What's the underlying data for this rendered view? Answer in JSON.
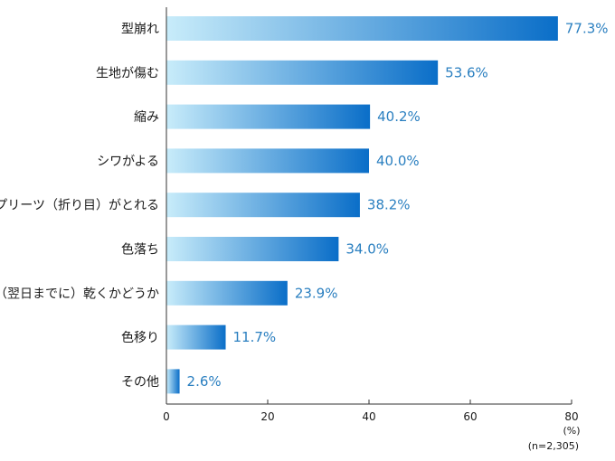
{
  "chart_data": {
    "type": "bar",
    "orientation": "horizontal",
    "categories": [
      "型崩れ",
      "生地が傷む",
      "縮み",
      "シワがよる",
      "プリーツ（折り目）がとれる",
      "色落ち",
      "（翌日までに）乾くかどうか",
      "色移り",
      "その他"
    ],
    "values": [
      77.3,
      53.6,
      40.2,
      40.0,
      38.2,
      34.0,
      23.9,
      11.7,
      2.6
    ],
    "value_labels": [
      "77.3%",
      "53.6%",
      "40.2%",
      "40.0%",
      "38.2%",
      "34.0%",
      "23.9%",
      "11.7%",
      "2.6%"
    ],
    "xlim": [
      0,
      80
    ],
    "ticks": [
      0,
      20,
      40,
      60,
      80
    ],
    "tick_labels": [
      "0",
      "20",
      "40",
      "60",
      "80"
    ],
    "unit_label": "(%)",
    "sample_note": "(n=2,305)",
    "grid": false,
    "colors": {
      "bar_start": "#c8ecfa",
      "bar_end": "#0a6ec8",
      "value_text": "#2a7fc0",
      "axis": "#333333"
    }
  }
}
